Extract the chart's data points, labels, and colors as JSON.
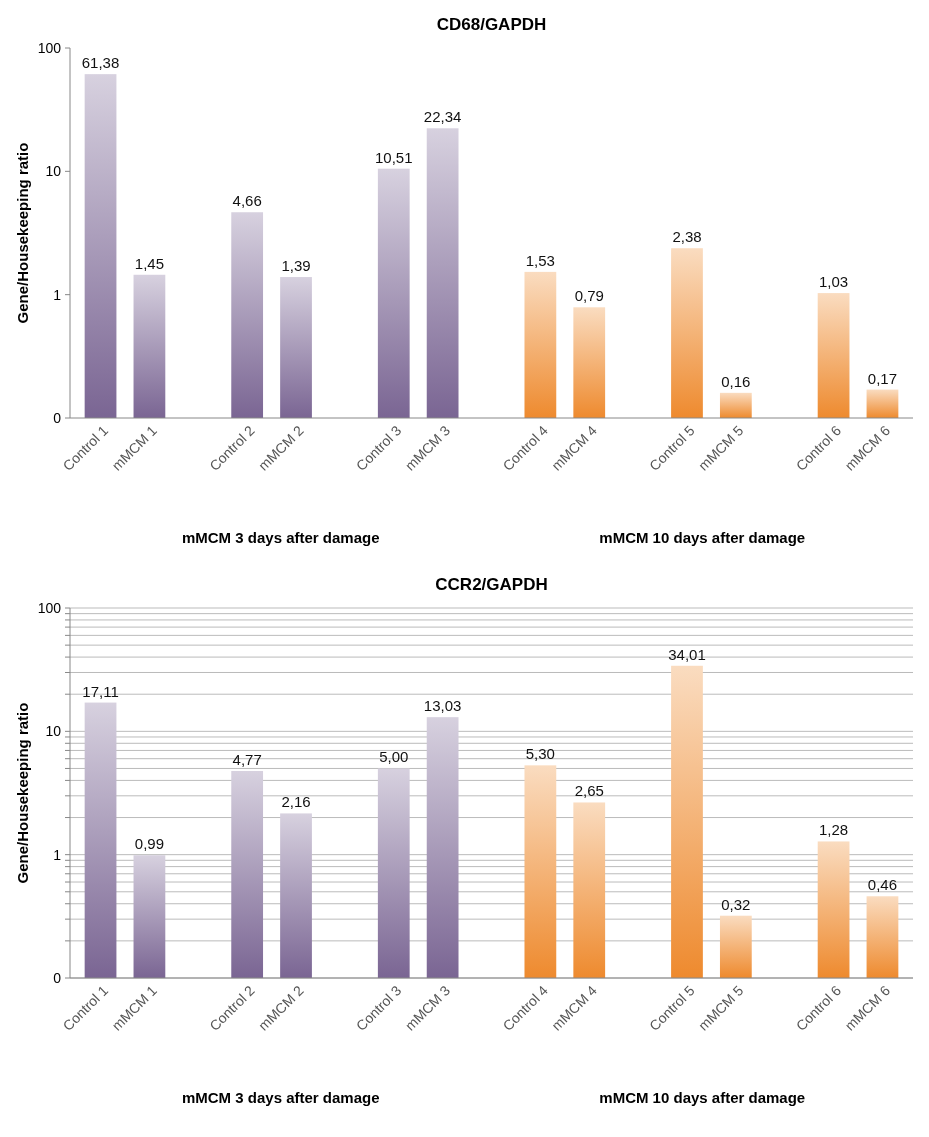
{
  "chart_data": [
    {
      "type": "bar",
      "title": "CD68/GAPDH",
      "ylabel": "Gene/Housekeeping ratio",
      "log": true,
      "categories": [
        "Control 1",
        "mMCM 1",
        null,
        "Control 2",
        "mMCM 2",
        null,
        "Control 3",
        "mMCM 3",
        null,
        "Control 4",
        "mMCM 4",
        null,
        "Control 5",
        "mMCM 5",
        null,
        "Control 6",
        "mMCM 6"
      ],
      "values": [
        61.38,
        1.45,
        null,
        4.66,
        1.39,
        null,
        10.51,
        22.34,
        null,
        1.53,
        0.79,
        null,
        2.38,
        0.16,
        null,
        1.03,
        0.17
      ],
      "value_labels": [
        "61,38",
        "1,45",
        null,
        "4,66",
        "1,39",
        null,
        "10,51",
        "22,34",
        null,
        "1,53",
        "0,79",
        null,
        "2,38",
        "0,16",
        null,
        "1,03",
        "0,17"
      ],
      "colors": [
        "#7a6593",
        "#7a6593",
        null,
        "#7a6593",
        "#7a6593",
        null,
        "#7a6593",
        "#7a6593",
        null,
        "#ee8a2e",
        "#ee8a2e",
        null,
        "#ee8a2e",
        "#ee8a2e",
        null,
        "#ee8a2e",
        "#ee8a2e"
      ],
      "ylim": [
        0.1,
        100
      ],
      "yticks": [
        {
          "value": 0.1,
          "label": "0"
        },
        1,
        10,
        100
      ],
      "annotations": [
        "mMCM 3 days after damage",
        "mMCM 10 days after damage"
      ]
    },
    {
      "type": "bar",
      "title": "CCR2/GAPDH",
      "ylabel": "Gene/Housekeeping ratio",
      "log": true,
      "grid": "y",
      "categories": [
        "Control 1",
        "mMCM 1",
        null,
        "Control 2",
        "mMCM 2",
        null,
        "Control 3",
        "mMCM 3",
        null,
        "Control 4",
        "mMCM 4",
        null,
        "Control 5",
        "mMCM 5",
        null,
        "Control 6",
        "mMCM 6"
      ],
      "values": [
        17.11,
        0.99,
        null,
        4.77,
        2.16,
        null,
        5.0,
        13.03,
        null,
        5.3,
        2.65,
        null,
        34.01,
        0.32,
        null,
        1.28,
        0.46
      ],
      "value_labels": [
        "17,11",
        "0,99",
        null,
        "4,77",
        "2,16",
        null,
        "5,00",
        "13,03",
        null,
        "5,30",
        "2,65",
        null,
        "34,01",
        "0,32",
        null,
        "1,28",
        "0,46"
      ],
      "colors": [
        "#7a6593",
        "#7a6593",
        null,
        "#7a6593",
        "#7a6593",
        null,
        "#7a6593",
        "#7a6593",
        null,
        "#ee8a2e",
        "#ee8a2e",
        null,
        "#ee8a2e",
        "#ee8a2e",
        null,
        "#ee8a2e",
        "#ee8a2e"
      ],
      "ylim": [
        0.1,
        100
      ],
      "yticks": [
        {
          "value": 0.1,
          "label": "0"
        },
        {
          "value": 0.2,
          "label": null
        },
        {
          "value": 0.3,
          "label": null
        },
        {
          "value": 0.4,
          "label": null
        },
        {
          "value": 0.5,
          "label": null
        },
        {
          "value": 0.6,
          "label": null
        },
        {
          "value": 0.7,
          "label": null
        },
        {
          "value": 0.8,
          "label": null
        },
        {
          "value": 0.9,
          "label": null
        },
        1,
        {
          "value": 2,
          "label": null
        },
        {
          "value": 3,
          "label": null
        },
        {
          "value": 4,
          "label": null
        },
        {
          "value": 5,
          "label": null
        },
        {
          "value": 6,
          "label": null
        },
        {
          "value": 7,
          "label": null
        },
        {
          "value": 8,
          "label": null
        },
        {
          "value": 9,
          "label": null
        },
        10,
        {
          "value": 20,
          "label": null
        },
        {
          "value": 30,
          "label": null
        },
        {
          "value": 40,
          "label": null
        },
        {
          "value": 50,
          "label": null
        },
        {
          "value": 60,
          "label": null
        },
        {
          "value": 70,
          "label": null
        },
        {
          "value": 80,
          "label": null
        },
        {
          "value": 90,
          "label": null
        },
        100
      ],
      "annotations": [
        "mMCM 3 days after damage",
        "mMCM 10 days after damage"
      ]
    }
  ]
}
